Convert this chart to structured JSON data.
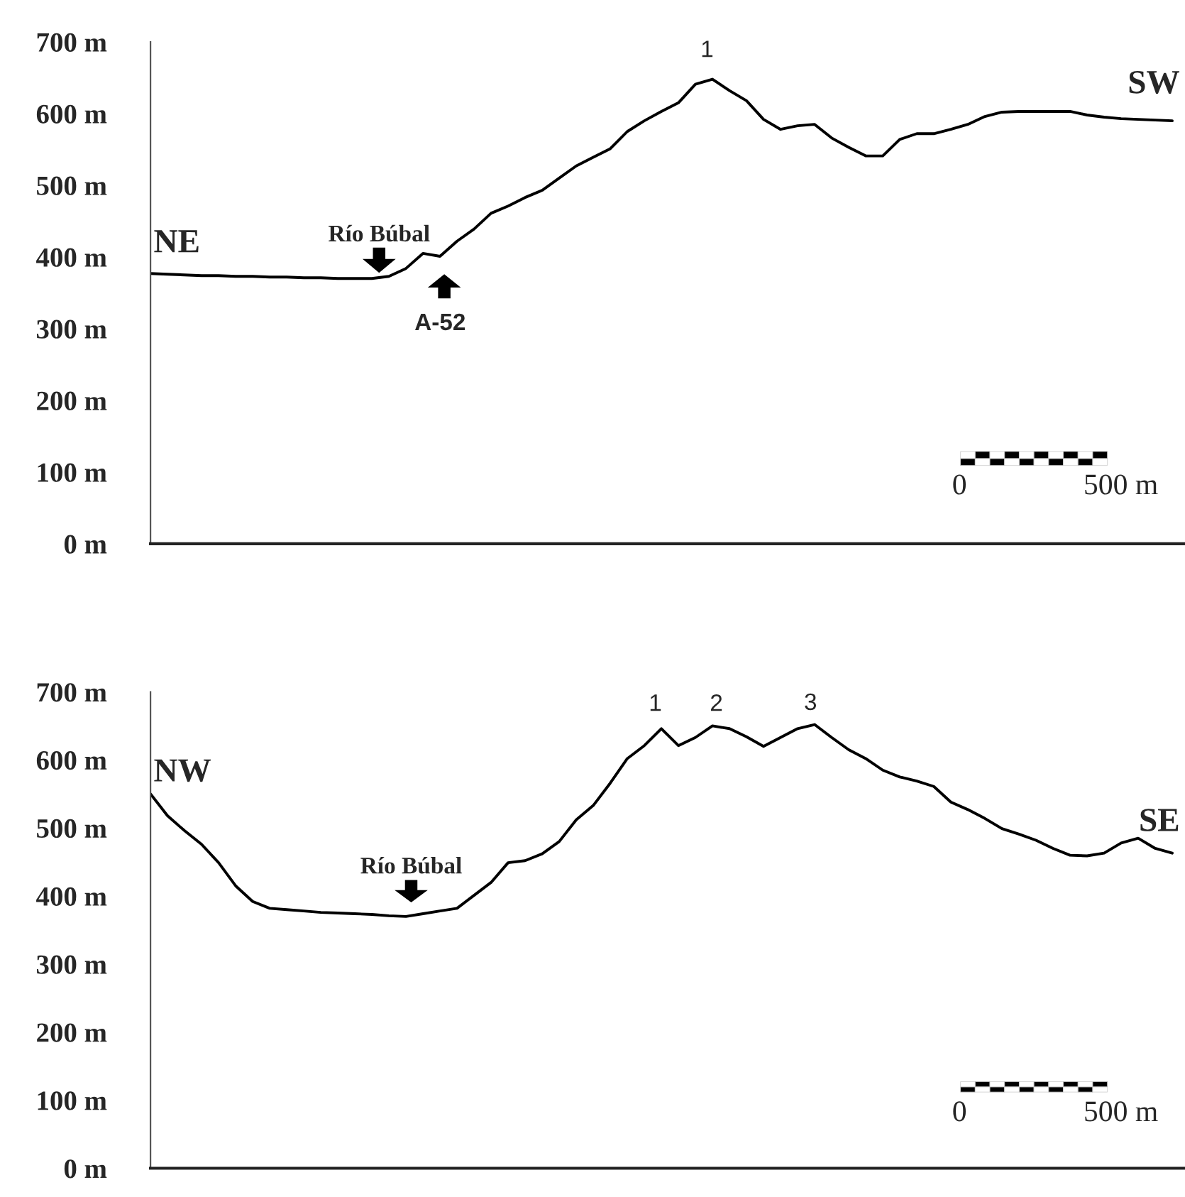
{
  "chart_data": [
    {
      "type": "line",
      "categories": [
        null,
        null,
        null,
        null,
        null,
        null,
        null,
        null,
        null,
        null,
        null,
        null,
        null,
        null,
        null,
        null,
        null,
        null,
        null,
        null,
        null,
        null,
        null,
        null,
        null,
        null,
        null,
        null,
        null,
        null,
        null,
        null,
        null,
        null,
        null,
        null,
        null,
        null,
        null,
        null,
        null,
        null,
        null,
        null,
        null,
        null,
        null,
        null,
        null,
        null,
        null,
        null,
        null,
        null,
        null,
        null,
        null,
        null,
        null,
        null,
        null
      ],
      "series": [
        {
          "color": "#000000",
          "values": [
            377,
            376,
            375,
            374,
            374,
            373,
            373,
            372,
            372,
            371,
            371,
            370,
            370,
            370,
            373,
            384,
            405,
            401,
            422,
            439,
            461,
            471,
            483,
            493,
            510,
            527,
            539,
            551,
            575,
            590,
            603,
            615,
            641,
            648,
            632,
            618,
            592,
            578,
            583,
            585,
            566,
            553,
            541,
            541,
            564,
            572,
            572,
            578,
            585,
            596,
            602,
            603,
            603,
            603,
            603,
            598,
            595,
            593,
            592,
            591,
            590
          ]
        }
      ],
      "ylim": [
        0,
        700
      ],
      "yticks": [
        {
          "value": 0,
          "label": "0 m"
        },
        {
          "value": 100,
          "label": "100 m"
        },
        {
          "value": 200,
          "label": "200 m"
        },
        {
          "value": 300,
          "label": "300 m"
        },
        {
          "value": 400,
          "label": "400 m"
        },
        {
          "value": 500,
          "label": "500 m"
        },
        {
          "value": 600,
          "label": "600 m"
        },
        {
          "value": 700,
          "label": "700 m"
        }
      ],
      "tick_labels": "y",
      "annotations": [
        "NE",
        "SW",
        "Río Búbal",
        "A-52",
        "1",
        "0",
        "500 m"
      ]
    },
    {
      "type": "line",
      "categories": [
        null,
        null,
        null,
        null,
        null,
        null,
        null,
        null,
        null,
        null,
        null,
        null,
        null,
        null,
        null,
        null,
        null,
        null,
        null,
        null,
        null,
        null,
        null,
        null,
        null,
        null,
        null,
        null,
        null,
        null,
        null,
        null,
        null,
        null,
        null,
        null,
        null,
        null,
        null,
        null,
        null,
        null,
        null,
        null,
        null,
        null,
        null,
        null,
        null,
        null,
        null,
        null,
        null,
        null,
        null,
        null,
        null,
        null,
        null,
        null,
        null
      ],
      "series": [
        {
          "color": "#000000",
          "values": [
            550,
            518,
            496,
            476,
            449,
            415,
            392,
            382,
            380,
            378,
            376,
            375,
            374,
            373,
            371,
            370,
            374,
            378,
            382,
            401,
            420,
            449,
            452,
            462,
            480,
            512,
            533,
            566,
            602,
            621,
            646,
            621,
            633,
            650,
            646,
            634,
            620,
            633,
            646,
            652,
            633,
            615,
            602,
            585,
            575,
            569,
            561,
            538,
            527,
            514,
            499,
            491,
            482,
            470,
            460,
            459,
            463,
            478,
            485,
            470,
            463
          ]
        }
      ],
      "ylim": [
        0,
        700
      ],
      "yticks": [
        {
          "value": 0,
          "label": "0 m"
        },
        {
          "value": 100,
          "label": "100 m"
        },
        {
          "value": 200,
          "label": "200 m"
        },
        {
          "value": 300,
          "label": "300 m"
        },
        {
          "value": 400,
          "label": "400 m"
        },
        {
          "value": 500,
          "label": "500 m"
        },
        {
          "value": 600,
          "label": "600 m"
        },
        {
          "value": 700,
          "label": "700 m"
        }
      ],
      "tick_labels": "y",
      "annotations": [
        "NW",
        "SE",
        "Río Búbal",
        "1",
        "2",
        "3",
        "0",
        "500 m"
      ]
    }
  ]
}
